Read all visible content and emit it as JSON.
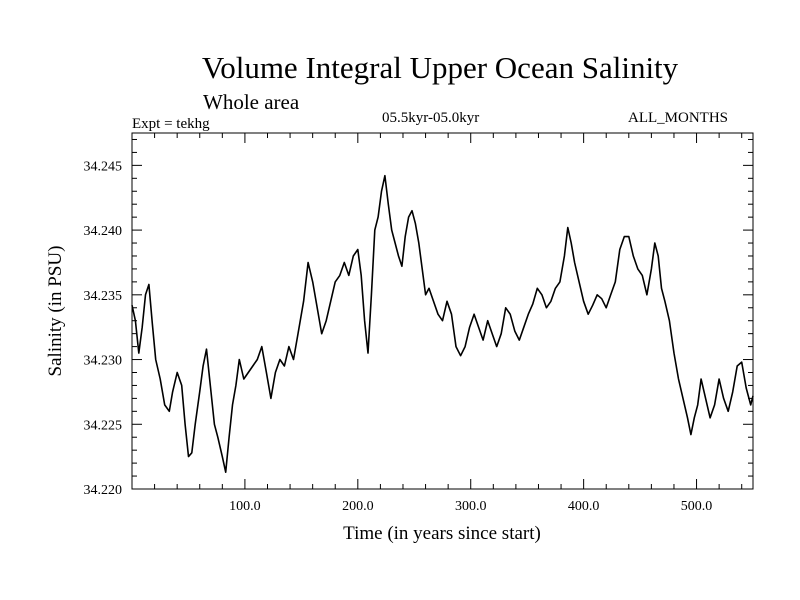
{
  "header": {
    "title": "Volume Integral Upper Ocean Salinity",
    "subtitle": "Whole area",
    "expt": "Expt = tekhg",
    "period": "05.5kyr-05.0kyr",
    "months": "ALL_MONTHS"
  },
  "chart_data": {
    "type": "line",
    "title": "Volume Integral Upper Ocean Salinity",
    "xlabel": "Time (in years since start)",
    "ylabel": "Salinity (in PSU)",
    "xlim": [
      0,
      550
    ],
    "ylim": [
      34.22,
      34.2475
    ],
    "x_ticks": [
      {
        "value": 100,
        "label": "100.0"
      },
      {
        "value": 200,
        "label": "200.0"
      },
      {
        "value": 300,
        "label": "300.0"
      },
      {
        "value": 400,
        "label": "400.0"
      },
      {
        "value": 500,
        "label": "500.0"
      }
    ],
    "y_ticks": [
      {
        "value": 34.22,
        "label": "34.220"
      },
      {
        "value": 34.225,
        "label": "34.225"
      },
      {
        "value": 34.23,
        "label": "34.230"
      },
      {
        "value": 34.235,
        "label": "34.235"
      },
      {
        "value": 34.24,
        "label": "34.240"
      },
      {
        "value": 34.245,
        "label": "34.245"
      }
    ],
    "series": [
      {
        "name": "salinity",
        "x": [
          0,
          3,
          6,
          9,
          12,
          15,
          18,
          21,
          25,
          29,
          33,
          36,
          40,
          44,
          47,
          50,
          53,
          56,
          60,
          63,
          66,
          70,
          73,
          76,
          80,
          83,
          86,
          89,
          92,
          95,
          99,
          103,
          107,
          111,
          115,
          119,
          123,
          127,
          131,
          135,
          139,
          143,
          147,
          152,
          156,
          160,
          164,
          168,
          172,
          176,
          180,
          184,
          188,
          192,
          196,
          200,
          203,
          206,
          209,
          212,
          215,
          218,
          221,
          224,
          227,
          230,
          233,
          236,
          239,
          242,
          245,
          248,
          251,
          254,
          257,
          260,
          263,
          267,
          271,
          275,
          279,
          283,
          287,
          291,
          295,
          299,
          303,
          307,
          311,
          315,
          319,
          323,
          327,
          331,
          335,
          339,
          343,
          347,
          351,
          355,
          359,
          363,
          367,
          371,
          375,
          379,
          383,
          386,
          389,
          392,
          396,
          400,
          404,
          408,
          412,
          416,
          420,
          424,
          428,
          432,
          436,
          440,
          444,
          448,
          452,
          456,
          460,
          463,
          466,
          469,
          472,
          476,
          480,
          484,
          488,
          492,
          495,
          498,
          501,
          504,
          508,
          512,
          516,
          520,
          524,
          528,
          532,
          536,
          540,
          544,
          548,
          550
        ],
        "values": [
          34.2342,
          34.233,
          34.2305,
          34.2325,
          34.235,
          34.2358,
          34.2328,
          34.23,
          34.2285,
          34.2265,
          34.226,
          34.2275,
          34.229,
          34.228,
          34.225,
          34.2225,
          34.2228,
          34.225,
          34.2275,
          34.2295,
          34.2308,
          34.2275,
          34.225,
          34.224,
          34.2225,
          34.2213,
          34.224,
          34.2265,
          34.228,
          34.23,
          34.2285,
          34.229,
          34.2295,
          34.23,
          34.231,
          34.229,
          34.227,
          34.229,
          34.23,
          34.2295,
          34.231,
          34.23,
          34.232,
          34.2345,
          34.2375,
          34.236,
          34.234,
          34.232,
          34.233,
          34.2345,
          34.236,
          34.2365,
          34.2375,
          34.2365,
          34.238,
          34.2385,
          34.2365,
          34.233,
          34.2305,
          34.235,
          34.24,
          34.241,
          34.243,
          34.2442,
          34.242,
          34.24,
          34.239,
          34.238,
          34.2372,
          34.2395,
          34.241,
          34.2415,
          34.2405,
          34.239,
          34.237,
          34.235,
          34.2355,
          34.2345,
          34.2335,
          34.233,
          34.2345,
          34.2335,
          34.231,
          34.2303,
          34.231,
          34.2325,
          34.2335,
          34.2325,
          34.2315,
          34.233,
          34.232,
          34.231,
          34.232,
          34.234,
          34.2335,
          34.2322,
          34.2315,
          34.2325,
          34.2335,
          34.2343,
          34.2355,
          34.235,
          34.234,
          34.2345,
          34.2355,
          34.236,
          34.238,
          34.2402,
          34.239,
          34.2375,
          34.236,
          34.2345,
          34.2335,
          34.2342,
          34.235,
          34.2347,
          34.234,
          34.235,
          34.236,
          34.2385,
          34.2395,
          34.2395,
          34.238,
          34.237,
          34.2365,
          34.235,
          34.237,
          34.239,
          34.238,
          34.2355,
          34.2345,
          34.233,
          34.2305,
          34.2285,
          34.227,
          34.2255,
          34.2242,
          34.2255,
          34.2265,
          34.2285,
          34.227,
          34.2255,
          34.2265,
          34.2285,
          34.227,
          34.226,
          34.2275,
          34.2295,
          34.2298,
          34.2278,
          34.2265,
          34.2272
        ]
      }
    ]
  }
}
